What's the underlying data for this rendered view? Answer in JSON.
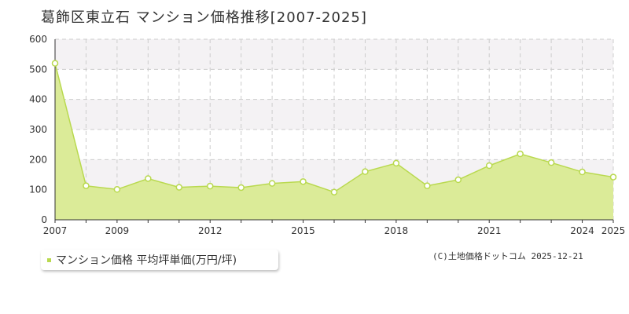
{
  "title": "葛飾区東立石 マンション価格推移[2007-2025]",
  "legend": {
    "label": "マンション価格 平均坪単価(万円/坪)"
  },
  "copyright": "(C)土地価格ドットコム 2025-12-21",
  "colors": {
    "fill": "#dbeb98",
    "line": "#b9d94f",
    "marker_fill": "#ffffff",
    "marker_stroke": "#b9d94f",
    "grid": "#cccccc",
    "band": "#f4f2f4",
    "axis": "#333333"
  },
  "chart_data": {
    "type": "area",
    "x": [
      2007,
      2008,
      2009,
      2010,
      2011,
      2012,
      2013,
      2014,
      2015,
      2016,
      2017,
      2018,
      2019,
      2020,
      2021,
      2022,
      2023,
      2024,
      2025
    ],
    "series": [
      {
        "name": "マンション価格 平均坪単価(万円/坪)",
        "values": [
          520,
          113,
          101,
          137,
          108,
          112,
          107,
          121,
          127,
          92,
          160,
          188,
          113,
          133,
          180,
          219,
          190,
          159,
          142
        ]
      }
    ],
    "xlim": [
      2007,
      2025
    ],
    "ylim": [
      0,
      600
    ],
    "yticks": [
      0,
      100,
      200,
      300,
      400,
      500,
      600
    ],
    "xtick_labels": [
      2007,
      2009,
      2012,
      2015,
      2018,
      2021,
      2024,
      2025
    ],
    "grid": true,
    "legend_position": "bottom-left"
  }
}
